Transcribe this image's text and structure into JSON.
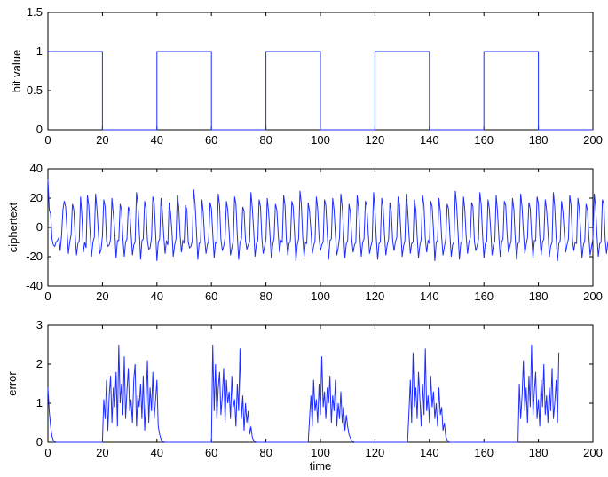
{
  "chart_data": [
    {
      "type": "line",
      "name": "bit-value-plot",
      "xlabel": "",
      "ylabel": "bit value",
      "xlim": [
        0,
        200
      ],
      "ylim": [
        0,
        1.5
      ],
      "xticks": [
        "0",
        "20",
        "40",
        "60",
        "80",
        "100",
        "120",
        "140",
        "160",
        "180",
        "200"
      ],
      "yticks": [
        "0",
        "0.5",
        "1",
        "1.5"
      ],
      "color": "#1f2dff",
      "series": [
        {
          "x": [
            0,
            20,
            20,
            40,
            40,
            60,
            60,
            80,
            80,
            100,
            100,
            120,
            120,
            140,
            140,
            160,
            160,
            180,
            180,
            200
          ],
          "y": [
            1,
            1,
            0,
            0,
            1,
            1,
            0,
            0,
            1,
            1,
            0,
            0,
            1,
            1,
            0,
            0,
            1,
            1,
            0,
            0
          ]
        }
      ]
    },
    {
      "type": "line",
      "name": "ciphertext-plot",
      "xlabel": "",
      "ylabel": "ciphertext",
      "xlim": [
        0,
        200
      ],
      "ylim": [
        -40,
        40
      ],
      "xticks": [
        "0",
        "20",
        "40",
        "60",
        "80",
        "100",
        "120",
        "140",
        "160",
        "180",
        "200"
      ],
      "yticks": [
        "-40",
        "-20",
        "0",
        "20",
        "40"
      ],
      "color": "#1f2dff",
      "series": [
        {
          "x_step": 0.5,
          "y": [
            33,
            12,
            9,
            -8,
            -12,
            -13,
            -10,
            -9,
            -7,
            -16,
            -6,
            12,
            18,
            14,
            -2,
            -18,
            -10,
            -5,
            16,
            12,
            -6,
            -19,
            -11,
            -9,
            21,
            7,
            -17,
            -10,
            -14,
            22,
            15,
            -4,
            -20,
            -10,
            -7,
            23,
            12,
            -3,
            -18,
            -15,
            -6,
            19,
            14,
            -9,
            -13,
            -12,
            -8,
            20,
            9,
            -2,
            -21,
            -9,
            -9,
            16,
            12,
            -7,
            -20,
            -10,
            -8,
            14,
            11,
            -3,
            -19,
            -12,
            -10,
            24,
            16,
            -1,
            -22,
            -9,
            -8,
            18,
            13,
            -9,
            -15,
            -14,
            -7,
            21,
            17,
            -4,
            -23,
            -10,
            -8,
            20,
            11,
            -6,
            -18,
            -9,
            -12,
            17,
            10,
            -3,
            -20,
            -12,
            -8,
            22,
            14,
            -5,
            -17,
            -9,
            -11,
            15,
            12,
            -10,
            -14,
            -13,
            -9,
            26,
            16,
            -2,
            -22,
            -11,
            -10,
            19,
            10,
            -7,
            -18,
            -12,
            -9,
            17,
            13,
            -4,
            -21,
            -10,
            -11,
            23,
            15,
            -8,
            -16,
            -13,
            -7,
            18,
            12,
            -3,
            -19,
            -14,
            -9,
            21,
            16,
            -6,
            -22,
            -10,
            -8,
            14,
            11,
            -9,
            -15,
            -12,
            -10,
            24,
            13,
            -2,
            -20,
            -11,
            -9,
            19,
            14,
            -7,
            -18,
            -13,
            -8,
            20,
            10,
            -5,
            -21,
            -12,
            -7,
            16,
            12,
            -4,
            -17,
            -9,
            -10,
            22,
            15,
            -8,
            -19,
            -11,
            -9,
            18,
            14,
            -3,
            -23,
            -12,
            -8,
            25,
            16,
            -6,
            -20,
            -10,
            -11,
            17,
            11,
            -2,
            -18,
            -13,
            -9,
            21,
            13,
            -7,
            -16,
            -12,
            -10,
            19,
            15,
            -4,
            -22,
            -9,
            -8,
            20,
            12,
            -5,
            -19,
            -14,
            -7,
            23,
            14,
            -3,
            -21,
            -11,
            -9,
            16,
            10,
            -8,
            -17,
            -12,
            -10,
            22,
            13,
            -6,
            -20,
            -10,
            -8,
            18,
            15,
            -2,
            -18,
            -13,
            -9,
            24,
            12,
            -7,
            -22,
            -11,
            -10,
            20,
            14,
            -4,
            -19,
            -12,
            -8,
            17,
            11,
            -9,
            -16,
            -10,
            -7,
            21,
            16,
            -3,
            -20,
            -13,
            -9,
            23,
            13,
            -5,
            -18,
            -11,
            -10,
            19,
            12,
            -6,
            -21,
            -12,
            -8,
            22,
            15,
            -8,
            -17,
            -9,
            -11,
            18,
            14,
            -2,
            -23,
            -10,
            -9,
            20,
            11,
            -7,
            -19,
            -13,
            -8,
            16,
            13,
            -4,
            -20,
            -12,
            -10,
            25,
            15,
            -3,
            -22,
            -11,
            -9,
            21,
            12,
            -6,
            -18,
            -10,
            -7,
            17,
            14,
            -9,
            -16,
            -13,
            -8,
            24,
            16,
            -5,
            -21,
            -11,
            -10,
            19,
            13,
            -2,
            -19,
            -12,
            -9,
            22,
            11,
            -7,
            -20,
            -10,
            -8,
            18,
            15,
            -4,
            -17,
            -13,
            -9,
            20,
            12,
            -8,
            -22,
            -11,
            -10,
            23,
            14,
            -3,
            -18,
            -12,
            -7,
            17,
            13,
            -6,
            -21,
            -9,
            -9,
            21,
            16,
            -5,
            -19,
            -10,
            -8,
            19,
            12,
            -2,
            -20,
            -13,
            -10,
            24,
            14,
            -7,
            -23,
            -11,
            -9,
            18,
            11,
            -4,
            -17,
            -12,
            -8,
            22,
            15,
            -9,
            -16,
            -10,
            -11,
            20,
            13,
            -3,
            -21,
            -12,
            -9,
            16,
            12,
            -6,
            -19,
            -13,
            -8,
            23,
            14,
            -5,
            -20,
            -11,
            -10,
            19,
            16,
            -8,
            -18,
            -10,
            -7,
            21,
            13,
            -2,
            -22,
            -12,
            -9,
            17,
            11,
            -7,
            -20,
            -13,
            -8,
            25,
            15,
            -4,
            -19,
            -11,
            -10,
            20,
            12,
            -3,
            -17,
            -9,
            -9,
            22,
            14,
            -6,
            -21,
            -10,
            -8,
            18,
            13,
            -9,
            -18,
            -12,
            -11,
            24,
            16,
            -5,
            -23,
            -11,
            -9,
            -12,
            -10
          ]
        }
      ]
    },
    {
      "type": "line",
      "name": "error-plot",
      "xlabel": "time",
      "ylabel": "error",
      "xlim": [
        0,
        200
      ],
      "ylim": [
        0,
        3
      ],
      "xticks": [
        "0",
        "20",
        "40",
        "60",
        "80",
        "100",
        "120",
        "140",
        "160",
        "180",
        "200"
      ],
      "yticks": [
        "0",
        "1",
        "2",
        "3"
      ],
      "color": "#1f2dff",
      "series": [
        {
          "x_step": 0.5,
          "y": [
            1.4,
            0.8,
            0.4,
            0.15,
            0.05,
            0.02,
            0,
            0,
            0,
            0,
            0,
            0,
            0,
            0,
            0,
            0,
            0,
            0,
            0,
            0,
            0,
            0,
            0,
            0,
            0,
            0,
            0,
            0,
            0,
            0,
            0,
            0,
            0,
            0,
            0,
            0,
            0,
            0,
            0,
            0,
            0,
            1.1,
            0.6,
            1.6,
            0.3,
            1.2,
            1.7,
            0.5,
            1.4,
            0.9,
            1.8,
            0.4,
            2.5,
            1.0,
            1.5,
            0.7,
            2.2,
            0.6,
            1.3,
            1.9,
            0.8,
            1.1,
            0.5,
            1.6,
            2.0,
            0.4,
            1.2,
            0.9,
            1.5,
            0.6,
            1.7,
            0.3,
            1.0,
            2.1,
            0.5,
            1.4,
            0.8,
            1.8,
            0.6,
            1.1,
            1.6,
            0.4,
            0.2,
            0.08,
            0.03,
            0.01,
            0,
            0,
            0,
            0,
            0,
            0,
            0,
            0,
            0,
            0,
            0,
            0,
            0,
            0,
            0,
            0,
            0,
            0,
            0,
            0,
            0,
            0,
            0,
            0,
            0,
            0,
            0,
            0,
            0,
            0,
            0,
            0,
            0,
            0,
            0,
            2.5,
            0.8,
            2.0,
            0.6,
            1.4,
            1.8,
            0.7,
            1.2,
            1.9,
            0.5,
            1.6,
            1.0,
            1.3,
            0.6,
            1.7,
            0.9,
            1.1,
            0.4,
            1.5,
            0.8,
            2.4,
            0.6,
            1.2,
            0.3,
            1.0,
            0.5,
            0.8,
            0.2,
            0.4,
            0.12,
            0.05,
            0.02,
            0,
            0,
            0,
            0,
            0,
            0,
            0,
            0,
            0,
            0,
            0,
            0,
            0,
            0,
            0,
            0,
            0,
            0,
            0,
            0,
            0,
            0,
            0,
            0,
            0,
            0,
            0,
            0,
            0,
            0,
            0,
            0,
            0,
            0,
            0,
            0,
            0,
            0,
            0,
            0.6,
            1.2,
            0.4,
            1.6,
            0.8,
            1.1,
            0.5,
            1.5,
            0.7,
            2.2,
            0.9,
            1.3,
            0.6,
            1.4,
            1.0,
            1.7,
            0.5,
            1.2,
            0.8,
            1.6,
            0.4,
            1.0,
            0.6,
            1.3,
            0.5,
            0.9,
            0.3,
            0.7,
            0.4,
            0.2,
            0.1,
            0.04,
            0.02,
            0,
            0,
            0,
            0,
            0,
            0,
            0,
            0,
            0,
            0,
            0,
            0,
            0,
            0,
            0,
            0,
            0,
            0,
            0,
            0,
            0,
            0,
            0,
            0,
            0,
            0,
            0,
            0,
            0,
            0,
            0,
            0,
            0,
            0,
            0,
            0,
            0,
            0,
            0,
            0,
            0.8,
            1.6,
            0.5,
            2.3,
            0.9,
            1.4,
            0.6,
            1.8,
            1.1,
            0.4,
            1.5,
            0.7,
            2.4,
            0.8,
            1.2,
            0.5,
            1.7,
            0.9,
            1.3,
            0.6,
            1.0,
            0.4,
            1.4,
            0.7,
            0.9,
            0.3,
            0.5,
            0.15,
            0.06,
            0.02,
            0,
            0,
            0,
            0,
            0,
            0,
            0,
            0,
            0,
            0,
            0,
            0,
            0,
            0,
            0,
            0,
            0,
            0,
            0,
            0,
            0,
            0,
            0,
            0,
            0,
            0,
            0,
            0,
            0,
            0,
            0,
            0,
            0,
            0,
            0,
            0,
            0,
            0,
            0,
            0,
            0,
            0,
            0,
            0,
            0,
            0,
            0,
            0,
            0,
            0,
            0,
            1.5,
            0.6,
            1.2,
            2.1,
            0.8,
            1.4,
            0.5,
            1.7,
            0.9,
            2.5,
            0.7,
            1.3,
            1.8,
            0.6,
            1.1,
            0.4,
            1.6,
            0.9,
            2.0,
            0.7,
            1.2,
            0.5,
            1.4,
            0.8,
            1.9,
            0.6,
            1.0,
            1.6,
            0.5,
            2.3
          ]
        }
      ]
    }
  ]
}
